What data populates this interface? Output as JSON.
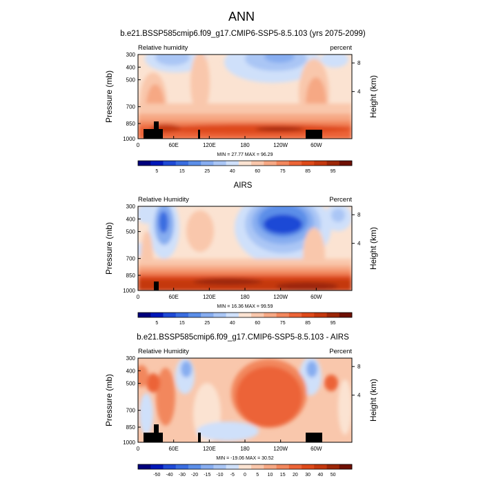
{
  "title": "ANN",
  "chart_data": [
    {
      "type": "heatmap",
      "subtitle": "b.e21.BSSP585cmip6.f09_g17.CMIP6-SSP5-8.5.103 (yrs 2075-2099)",
      "left_label": "Relative humidity",
      "right_label": "percent",
      "ylabel": "Pressure (mb)",
      "y2label": "Height (km)",
      "xticks": [
        "0",
        "60E",
        "120E",
        "180",
        "120W",
        "60W"
      ],
      "yticks": [
        "300",
        "400",
        "500",
        "700",
        "850",
        "1000"
      ],
      "y2ticks": [
        "8",
        "4"
      ],
      "stats": "MIN = 27.77  MAX = 96.29",
      "colorbar_labels": [
        "5",
        "15",
        "25",
        "40",
        "60",
        "75",
        "85",
        "95"
      ],
      "colorbar_colors": [
        "#00007c",
        "#0018b8",
        "#1f4ad6",
        "#3a6de0",
        "#5b8ee8",
        "#87adf0",
        "#aac6f5",
        "#cfe0fa",
        "#fbe3d2",
        "#f9c7ac",
        "#f6a884",
        "#f2875d",
        "#ec6437",
        "#de4a1a",
        "#c4380e",
        "#9c2607",
        "#6e1003"
      ],
      "min": 27.77,
      "max": 96.29
    },
    {
      "type": "heatmap",
      "subtitle": "AIRS",
      "left_label": "Relative Humidity",
      "right_label": "Percent",
      "ylabel": "Pressure (mb)",
      "y2label": "Height (km)",
      "xticks": [
        "0",
        "60E",
        "120E",
        "180",
        "120W",
        "60W"
      ],
      "yticks": [
        "300",
        "400",
        "500",
        "700",
        "850",
        "1000"
      ],
      "y2ticks": [
        "8",
        "4"
      ],
      "stats": "MIN = 16.36  MAX = 99.59",
      "colorbar_labels": [
        "5",
        "15",
        "25",
        "40",
        "60",
        "75",
        "85",
        "95"
      ],
      "colorbar_colors": [
        "#00007c",
        "#0018b8",
        "#1f4ad6",
        "#3a6de0",
        "#5b8ee8",
        "#87adf0",
        "#aac6f5",
        "#cfe0fa",
        "#fbe3d2",
        "#f9c7ac",
        "#f6a884",
        "#f2875d",
        "#ec6437",
        "#de4a1a",
        "#c4380e",
        "#9c2607",
        "#6e1003"
      ],
      "min": 16.36,
      "max": 99.59
    },
    {
      "type": "heatmap",
      "subtitle": "b.e21.BSSP585cmip6.f09_g17.CMIP6-SSP5-8.5.103 - AIRS",
      "left_label": "Relative Humidity",
      "right_label": "Percent",
      "ylabel": "Pressure (mb)",
      "y2label": "Height (km)",
      "xticks": [
        "0",
        "60E",
        "120E",
        "180",
        "120W",
        "60W"
      ],
      "yticks": [
        "300",
        "400",
        "500",
        "700",
        "850",
        "1000"
      ],
      "y2ticks": [
        "8",
        "4"
      ],
      "stats": "MIN = -19.06  MAX = 30.52",
      "colorbar_labels": [
        "-50",
        "-40",
        "-30",
        "-20",
        "-15",
        "-10",
        "-5",
        "0",
        "5",
        "10",
        "15",
        "20",
        "30",
        "40",
        "50"
      ],
      "colorbar_colors": [
        "#00007c",
        "#0018b8",
        "#1f4ad6",
        "#3a6de0",
        "#5b8ee8",
        "#87adf0",
        "#aac6f5",
        "#cfe0fa",
        "#fbe3d2",
        "#f9c7ac",
        "#f6a884",
        "#f2875d",
        "#ec6437",
        "#de4a1a",
        "#c4380e",
        "#9c2607",
        "#6e1003"
      ],
      "min": -19.06,
      "max": 30.52
    }
  ]
}
